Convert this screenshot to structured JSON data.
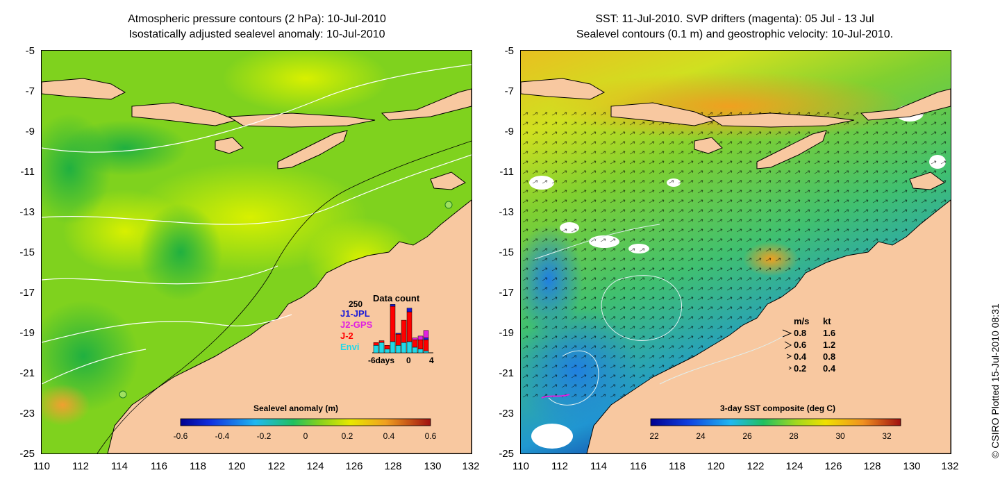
{
  "left_panel": {
    "title_line1": "Atmospheric pressure contours (2 hPa): 10-Jul-2010",
    "title_line2": "Isostatically adjusted sealevel anomaly: 10-Jul-2010",
    "colorbar": {
      "title": "Sealevel anomaly (m)",
      "ticks": [
        "-0.6",
        "-0.4",
        "-0.2",
        "0",
        "0.2",
        "0.4",
        "0.6"
      ]
    },
    "data_count": {
      "title": "Data count",
      "max_label": "250",
      "legend": [
        {
          "label": "J1-JPL",
          "color": "#1a1ad8"
        },
        {
          "label": "J2-GPS",
          "color": "#e020e0"
        },
        {
          "label": "J-2",
          "color": "#ff0000"
        },
        {
          "label": "Envi",
          "color": "#20d8e8"
        }
      ],
      "x_ticks": [
        "-6days",
        "0",
        "4"
      ],
      "bars": [
        {
          "envi": 40,
          "j2": 15,
          "j1": 0,
          "gps": 0
        },
        {
          "envi": 55,
          "j2": 10,
          "j1": 0,
          "gps": 0
        },
        {
          "envi": 20,
          "j2": 20,
          "j1": 0,
          "gps": 0
        },
        {
          "envi": 60,
          "j2": 190,
          "j1": 10,
          "gps": 0
        },
        {
          "envi": 40,
          "j2": 60,
          "j1": 5,
          "gps": 0
        },
        {
          "envi": 55,
          "j2": 120,
          "j1": 0,
          "gps": 0
        },
        {
          "envi": 60,
          "j2": 160,
          "j1": 20,
          "gps": 0
        },
        {
          "envi": 30,
          "j2": 40,
          "j1": 0,
          "gps": 10
        },
        {
          "envi": 20,
          "j2": 50,
          "j1": 0,
          "gps": 20
        },
        {
          "envi": 10,
          "j2": 60,
          "j1": 10,
          "gps": 40
        }
      ]
    }
  },
  "right_panel": {
    "title_line1": "SST: 11-Jul-2010. SVP drifters (magenta): 05 Jul - 13 Jul",
    "title_line2": "Sealevel contours (0.1 m) and geostrophic velocity: 10-Jul-2010.",
    "colorbar": {
      "title": "3-day SST composite (deg C)",
      "ticks": [
        "22",
        "24",
        "26",
        "28",
        "30",
        "32"
      ]
    },
    "velocity_legend": {
      "header_ms": "m/s",
      "header_kt": "kt",
      "rows": [
        {
          "ms": "0.8",
          "kt": "1.6"
        },
        {
          "ms": "0.6",
          "kt": "1.2"
        },
        {
          "ms": "0.4",
          "kt": "0.8"
        },
        {
          "ms": "0.2",
          "kt": "0.4"
        }
      ]
    }
  },
  "axes": {
    "y_ticks": [
      "-5",
      "-7",
      "-9",
      "-11",
      "-13",
      "-15",
      "-17",
      "-19",
      "-21",
      "-23",
      "-25"
    ],
    "x_ticks": [
      "110",
      "112",
      "114",
      "116",
      "118",
      "120",
      "122",
      "124",
      "126",
      "128",
      "130",
      "132"
    ]
  },
  "credit": "© CSIRO Plotted 15-Jul-2010 08:31",
  "colors": {
    "land": "#f8c8a0",
    "sla_ocean_base": "#7fd21e",
    "sla_ocean_high": "#c8f000",
    "sst_warm": "#f0a020",
    "sst_mid": "#60d040",
    "sst_cool": "#20a8d0"
  }
}
